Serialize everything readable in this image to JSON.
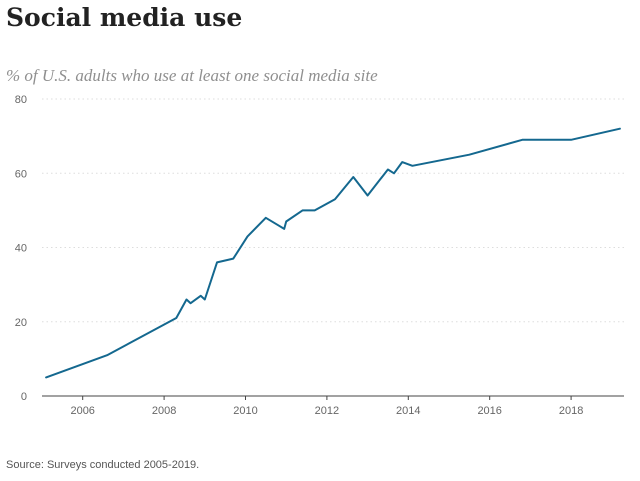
{
  "header": {
    "title": "Social media use",
    "subtitle": "% of U.S. adults who use at least one social media site"
  },
  "footer": {
    "source": "Source: Surveys conducted 2005-2019."
  },
  "colors": {
    "line": "#14688f",
    "grid": "#dddddd",
    "axis": "#444444"
  },
  "chart_data": {
    "type": "line",
    "title": "Social media use",
    "subtitle": "% of U.S. adults who use at least one social media site",
    "xlabel": "",
    "ylabel": "",
    "xlim": [
      2005,
      2019.3
    ],
    "ylim": [
      0,
      80
    ],
    "grid": true,
    "x_ticks": [
      "2006",
      "2008",
      "2010",
      "2012",
      "2014",
      "2016",
      "2018"
    ],
    "y_ticks": [
      "0",
      "20",
      "40",
      "60",
      "80"
    ],
    "series": [
      {
        "x": [
          2005.1,
          2006.6,
          2008.3,
          2008.55,
          2008.65,
          2008.9,
          2009.0,
          2009.3,
          2009.7,
          2010.05,
          2010.5,
          2010.8,
          2010.95,
          2011.0,
          2011.4,
          2011.7,
          2012.2,
          2012.65,
          2013.0,
          2013.5,
          2013.65,
          2013.85,
          2014.1,
          2015.5,
          2016.8,
          2018.0,
          2019.2
        ],
        "y": [
          5,
          11,
          21,
          26,
          25,
          27,
          26,
          36,
          37,
          43,
          48,
          46,
          45,
          47,
          50,
          50,
          53,
          59,
          54,
          61,
          60,
          63,
          62,
          65,
          69,
          69,
          72
        ]
      }
    ]
  }
}
